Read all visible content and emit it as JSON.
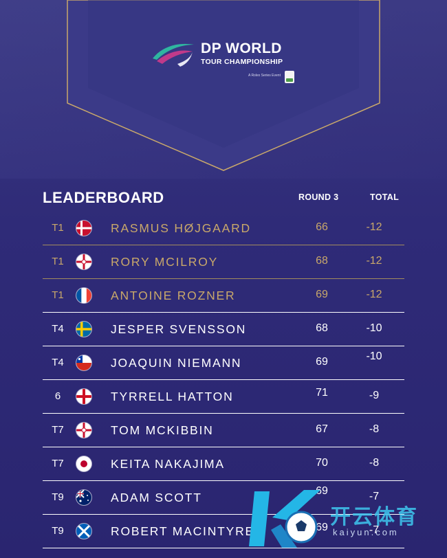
{
  "header": {
    "logo_title": "DP WORLD",
    "logo_subtitle": "TOUR CHAMPIONSHIP",
    "event_tag": "A Rolex Series Event"
  },
  "leaderboard": {
    "title": "LEADERBOARD",
    "col_round": "ROUND 3",
    "col_total": "TOTAL",
    "rows": [
      {
        "pos": "T1",
        "flag": "denmark",
        "name": "RASMUS HØJGAARD",
        "round3": "66",
        "total": "-12"
      },
      {
        "pos": "T1",
        "flag": "northern-ireland",
        "name": "RORY MCILROY",
        "round3": "68",
        "total": "-12"
      },
      {
        "pos": "T1",
        "flag": "france",
        "name": "ANTOINE ROZNER",
        "round3": "69",
        "total": "-12"
      },
      {
        "pos": "T4",
        "flag": "sweden",
        "name": "JESPER SVENSSON",
        "round3": "68",
        "total": "-10"
      },
      {
        "pos": "T4",
        "flag": "chile",
        "name": "JOAQUIN NIEMANN",
        "round3": "69",
        "total": "-10"
      },
      {
        "pos": "6",
        "flag": "england",
        "name": "TYRRELL HATTON",
        "round3": "71",
        "total": "-9"
      },
      {
        "pos": "T7",
        "flag": "northern-ireland",
        "name": "TOM MCKIBBIN",
        "round3": "67",
        "total": "-8"
      },
      {
        "pos": "T7",
        "flag": "japan",
        "name": "KEITA NAKAJIMA",
        "round3": "70",
        "total": "-8"
      },
      {
        "pos": "T9",
        "flag": "australia",
        "name": "ADAM SCOTT",
        "round3": "69",
        "total": "-7"
      },
      {
        "pos": "T9",
        "flag": "scotland",
        "name": "ROBERT MACINTYRE",
        "round3": "69",
        "total": "-7"
      }
    ]
  },
  "colors": {
    "gold": "#c9a86a",
    "background": "#2f2b78",
    "text": "#ffffff"
  },
  "watermark": {
    "text": "开云体育",
    "url": "kaiyun.com"
  }
}
